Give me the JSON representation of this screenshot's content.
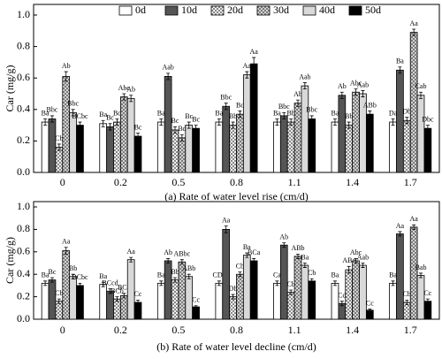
{
  "chart_data": [
    {
      "type": "bar",
      "caption": "(a) Rate of water level rise (cm/d)",
      "y_label": "Car (mg/g)",
      "legend": "top",
      "categories": [
        "0",
        "0.2",
        "0.5",
        "0.8",
        "1.1",
        "1.4",
        "1.7"
      ],
      "ylim": [
        0,
        1.0
      ],
      "yticks": [
        {
          "value": 0,
          "label": "0.0"
        },
        0.2,
        0.4,
        0.6,
        0.8,
        {
          "value": 1.0,
          "label": "1.0"
        }
      ],
      "series": [
        {
          "name": "0d",
          "color": "#ffffff",
          "values": [
            0.32,
            0.31,
            0.32,
            0.32,
            0.32,
            0.32,
            0.32
          ],
          "errors": [
            0.02,
            0.02,
            0.02,
            0.02,
            0.02,
            0.02,
            0.02
          ],
          "letters": [
            "Ba",
            "Ba",
            "Ba",
            "Ba",
            "Ba",
            "Ba",
            "Da"
          ]
        },
        {
          "name": "10d",
          "color": "#555555",
          "values": [
            0.34,
            0.29,
            0.61,
            0.42,
            0.36,
            0.49,
            0.65
          ],
          "errors": [
            0.02,
            0.02,
            0.02,
            0.02,
            0.02,
            0.02,
            0.02
          ],
          "letters": [
            "Bbc",
            "Bc",
            "Aab",
            "Bbc",
            "Bbc",
            "Ab",
            "Ba"
          ]
        },
        {
          "name": "20d",
          "color": "#ffffff",
          "pattern": "cross",
          "values": [
            0.16,
            0.32,
            0.27,
            0.3,
            0.32,
            0.3,
            0.33
          ],
          "errors": [
            0.02,
            0.02,
            0.02,
            0.02,
            0.02,
            0.02,
            0.02
          ],
          "letters": [
            "Cb",
            "Bc",
            "Bc",
            "Bb",
            "Bb",
            "Bb",
            "Db"
          ]
        },
        {
          "name": "30d",
          "color": "#dddddd",
          "pattern": "cross",
          "values": [
            0.61,
            0.48,
            0.22,
            0.37,
            0.44,
            0.51,
            0.89
          ],
          "errors": [
            0.03,
            0.02,
            0.02,
            0.02,
            0.02,
            0.02,
            0.02
          ],
          "letters": [
            "Ab",
            "Abc",
            "Bd",
            "Bc",
            "Ab",
            "Abc",
            "Aa"
          ]
        },
        {
          "name": "40d",
          "color": "#d9d9d9",
          "values": [
            0.38,
            0.47,
            0.3,
            0.62,
            0.55,
            0.5,
            0.49
          ],
          "errors": [
            0.02,
            0.02,
            0.02,
            0.02,
            0.02,
            0.02,
            0.02
          ],
          "letters": [
            "Bbc",
            "Ab",
            "Bc",
            "Aa",
            "Aab",
            "Aab",
            "Cab"
          ]
        },
        {
          "name": "50d",
          "color": "#000000",
          "values": [
            0.3,
            0.23,
            0.28,
            0.69,
            0.34,
            0.37,
            0.28
          ],
          "errors": [
            0.02,
            0.02,
            0.02,
            0.04,
            0.02,
            0.02,
            0.02
          ],
          "letters": [
            "BCbc",
            "Bc",
            "Bc",
            "Aa",
            "Bbc",
            "ABb",
            "Dbc"
          ]
        }
      ]
    },
    {
      "type": "bar",
      "caption": "(b) Rate of water level decline (cm/d)",
      "y_label": "Car  (mg/g)",
      "categories": [
        "0",
        "0.2",
        "0.5",
        "0.8",
        "1.1",
        "1.4",
        "1.7"
      ],
      "ylim": [
        0,
        1.0
      ],
      "yticks": [
        {
          "value": 0,
          "label": "0.0"
        },
        0.2,
        0.4,
        0.6,
        0.8,
        {
          "value": 1.0,
          "label": "1.0"
        }
      ],
      "series": [
        {
          "color": "#ffffff",
          "values": [
            0.32,
            0.31,
            0.32,
            0.32,
            0.32,
            0.32,
            0.32
          ],
          "errors": [
            0.02,
            0.02,
            0.02,
            0.02,
            0.02,
            0.02,
            0.02
          ],
          "letters": [
            "Ba",
            "Ba",
            "Ba",
            "CDa",
            "Ca",
            "Ba",
            "Ba"
          ]
        },
        {
          "color": "#555555",
          "values": [
            0.35,
            0.25,
            0.52,
            0.8,
            0.66,
            0.14,
            0.76
          ],
          "errors": [
            0.02,
            0.02,
            0.02,
            0.03,
            0.02,
            0.02,
            0.02
          ],
          "letters": [
            "Bc",
            "BCcd",
            "Ab",
            "Aa",
            "Ab",
            "Cd",
            "Aa"
          ]
        },
        {
          "color": "#ffffff",
          "pattern": "cross",
          "values": [
            0.16,
            0.18,
            0.35,
            0.2,
            0.24,
            0.44,
            0.15
          ],
          "errors": [
            0.02,
            0.02,
            0.02,
            0.02,
            0.02,
            0.03,
            0.02
          ],
          "letters": [
            "Cb",
            "BCb",
            "Bb",
            "Db",
            "Cb",
            "ABa",
            "Cb"
          ]
        },
        {
          "color": "#dddddd",
          "pattern": "cross",
          "values": [
            0.61,
            0.21,
            0.51,
            0.4,
            0.56,
            0.52,
            0.82
          ],
          "errors": [
            0.03,
            0.02,
            0.02,
            0.02,
            0.02,
            0.02,
            0.02
          ],
          "letters": [
            "Aa",
            "BCd",
            "ABbc",
            "Cb",
            "ABb",
            "Abc",
            "Aa"
          ]
        },
        {
          "color": "#d9d9d9",
          "values": [
            0.38,
            0.53,
            0.38,
            0.57,
            0.48,
            0.48,
            0.39
          ],
          "errors": [
            0.02,
            0.02,
            0.02,
            0.02,
            0.02,
            0.02,
            0.02
          ],
          "letters": [
            "Bb",
            "Aa",
            "ABb",
            "Ba",
            "Ba",
            "Aab",
            "Bab"
          ]
        },
        {
          "color": "#000000",
          "values": [
            0.3,
            0.15,
            0.11,
            0.52,
            0.34,
            0.08,
            0.16
          ],
          "errors": [
            0.02,
            0.02,
            0.01,
            0.02,
            0.02,
            0.01,
            0.02
          ],
          "letters": [
            "BCbc",
            "Cc",
            "Cc",
            "BCa",
            "Cb",
            "Cc",
            "Cc"
          ]
        }
      ]
    }
  ]
}
